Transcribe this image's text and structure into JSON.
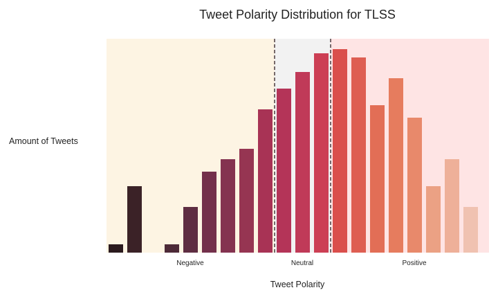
{
  "chart_data": {
    "type": "bar",
    "title": "Tweet Polarity Distribution for TLSS",
    "xlabel": "Tweet Polarity",
    "ylabel": "Amount of Tweets",
    "x_ticks": [
      "Negative",
      "Neutral",
      "Positive"
    ],
    "values": [
      4,
      32,
      0,
      4,
      22,
      39,
      45,
      50,
      69,
      79,
      87,
      96,
      98,
      94,
      71,
      84,
      65,
      32,
      45,
      22
    ],
    "ylim": [
      0,
      103
    ],
    "bar_colors": [
      "#2b1a1e",
      "#3b2227",
      "#432630",
      "#4d2a38",
      "#5e2d42",
      "#73304b",
      "#843350",
      "#963552",
      "#a83355",
      "#b43458",
      "#c03a58",
      "#cc3f54",
      "#da4f4c",
      "#de5e52",
      "#e26e56",
      "#e67c5e",
      "#e8896b",
      "#eba184",
      "#eeb099",
      "#f0c2b1"
    ],
    "regions": [
      {
        "label": "Negative",
        "color": "#fdf4e3"
      },
      {
        "label": "Neutral",
        "color": "#f2f2f2"
      },
      {
        "label": "Positive",
        "color": "#fee4e4"
      }
    ],
    "divider_color": "#4a3a3e",
    "grid": false,
    "legend": "none"
  }
}
